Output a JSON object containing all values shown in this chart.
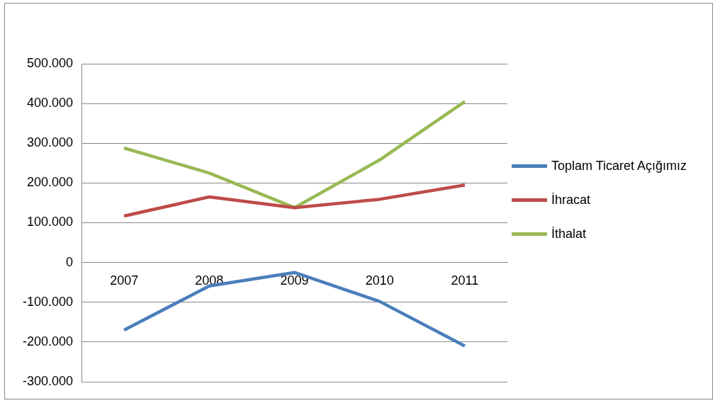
{
  "chart_data": {
    "type": "line",
    "categories": [
      "2007",
      "2008",
      "2009",
      "2010",
      "2011"
    ],
    "series": [
      {
        "name": "Toplam Ticaret Açığımız",
        "color": "#4a7ebb",
        "values": [
          -170000,
          -59000,
          -25000,
          -98000,
          -210000
        ]
      },
      {
        "name": "İhracat",
        "color": "#be4b48",
        "values": [
          117000,
          165000,
          138000,
          159000,
          195000
        ]
      },
      {
        "name": "İthalat",
        "color": "#98b954",
        "values": [
          288000,
          225000,
          138000,
          258000,
          405000
        ]
      }
    ],
    "ylim": [
      -300000,
      500000
    ],
    "yticks": [
      {
        "value": -300000,
        "label": "-300.000"
      },
      {
        "value": -200000,
        "label": "-200.000"
      },
      {
        "value": -100000,
        "label": "-100.000"
      },
      0,
      {
        "value": 100000,
        "label": "100.000"
      },
      {
        "value": 200000,
        "label": "200.000"
      },
      {
        "value": 300000,
        "label": "300.000"
      },
      {
        "value": 400000,
        "label": "400.000"
      },
      {
        "value": 500000,
        "label": "500.000"
      }
    ],
    "grid": "y",
    "legend": "right",
    "marker": "none",
    "line_style": "solid"
  }
}
